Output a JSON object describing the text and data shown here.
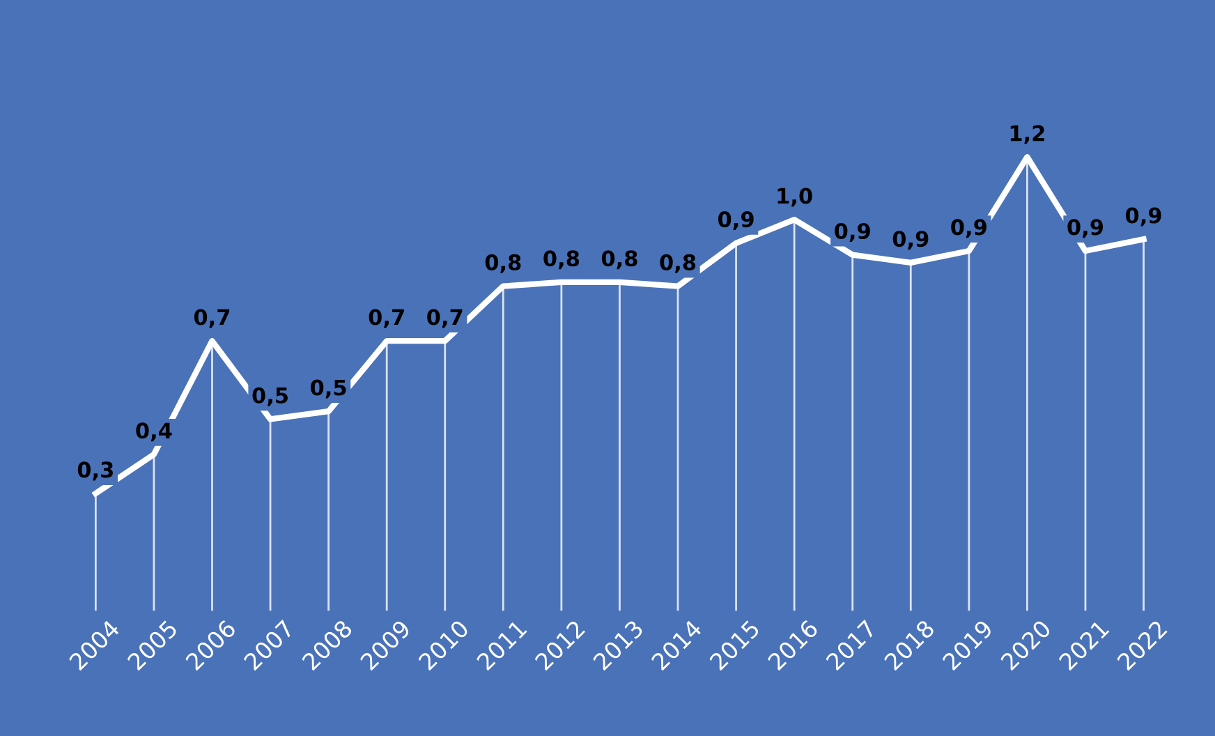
{
  "chart_data": {
    "type": "line",
    "categories": [
      "2004",
      "2005",
      "2006",
      "2007",
      "2008",
      "2009",
      "2010",
      "2011",
      "2012",
      "2013",
      "2014",
      "2015",
      "2016",
      "2017",
      "2018",
      "2019",
      "2020",
      "2021",
      "2022"
    ],
    "series": [
      {
        "color": "#ffffff",
        "values": [
          0.3,
          0.4,
          0.69,
          0.49,
          0.51,
          0.69,
          0.69,
          0.83,
          0.84,
          0.84,
          0.83,
          0.94,
          1.0,
          0.91,
          0.89,
          0.92,
          1.16,
          0.92,
          0.95
        ],
        "value_labels": [
          "0,3",
          "0,4",
          "0,7",
          "0,5",
          "0,5",
          "0,7",
          "0,7",
          "0,8",
          "0,8",
          "0,8",
          "0,8",
          "0,9",
          "1,0",
          "0,9",
          "0,9",
          "0,9",
          "1,2",
          "0,9",
          "0,9"
        ]
      }
    ],
    "grid": "x",
    "legend": false,
    "marker": "none",
    "line_style": "solid"
  }
}
